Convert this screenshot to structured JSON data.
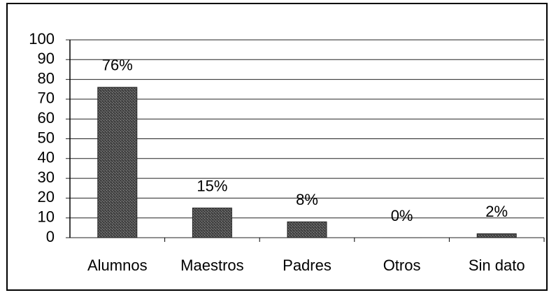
{
  "chart_data": {
    "type": "bar",
    "categories": [
      "Alumnos",
      "Maestros",
      "Padres",
      "Otros",
      "Sin dato"
    ],
    "values": [
      76,
      15,
      8,
      0,
      2
    ],
    "value_labels": [
      "76%",
      "15%",
      "8%",
      "0%",
      "2%"
    ],
    "color": "#555555",
    "ylim": [
      0,
      100
    ],
    "yticks": [
      0,
      10,
      20,
      30,
      40,
      50,
      60,
      70,
      80,
      90,
      100
    ],
    "grid": true
  }
}
